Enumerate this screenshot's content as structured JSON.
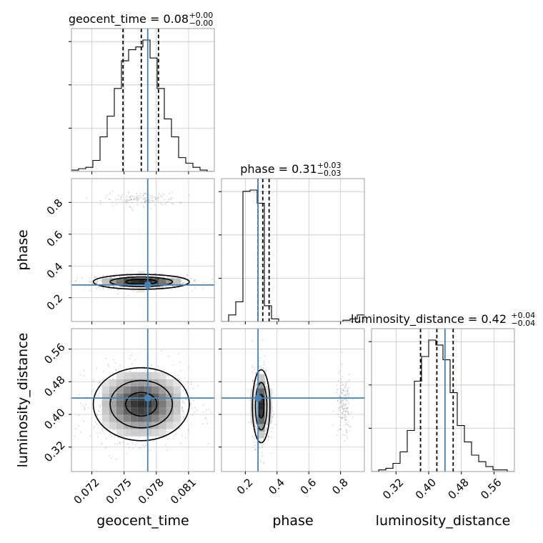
{
  "chart_data": {
    "type": "corner",
    "parameters": [
      "geocent_time",
      "phase",
      "luminosity_distance"
    ],
    "titles": [
      {
        "param": "geocent_time",
        "text": "geocent_time = 0.08",
        "sup": "+0.00",
        "sub": "−0.00"
      },
      {
        "param": "phase",
        "text": "phase = 0.31",
        "sup": "+0.03",
        "sub": "−0.03"
      },
      {
        "param": "luminosity_distance",
        "text": "luminosity_distance = 0.42",
        "sup": "+0.04",
        "sub": "−0.04"
      }
    ],
    "ranges": {
      "geocent_time": [
        0.0701,
        0.0834
      ],
      "phase": [
        0.05,
        0.95
      ],
      "luminosity_distance": [
        0.26,
        0.61
      ]
    },
    "ticks": {
      "geocent_time": [
        0.072,
        0.075,
        0.078,
        0.081
      ],
      "phase": [
        0.2,
        0.4,
        0.6,
        0.8
      ],
      "luminosity_distance": [
        0.32,
        0.4,
        0.48,
        0.56
      ]
    },
    "tick_labels": {
      "geocent_time": [
        "0.072",
        "0.075",
        "0.078",
        "0.081"
      ],
      "phase": [
        "0.2",
        "0.4",
        "0.6",
        "0.8"
      ],
      "luminosity_distance": [
        "0.32",
        "0.40",
        "0.48",
        "0.56"
      ]
    },
    "truths": {
      "geocent_time": 0.0772,
      "phase": 0.28,
      "luminosity_distance": 0.44
    },
    "quantiles": {
      "geocent_time": [
        0.0749,
        0.0766,
        0.0782
      ],
      "phase": [
        0.28,
        0.31,
        0.35
      ],
      "luminosity_distance": [
        0.38,
        0.42,
        0.46
      ]
    },
    "histograms": {
      "geocent_time": {
        "bins": 20,
        "counts": [
          1,
          2,
          3,
          8,
          25,
          40,
          60,
          80,
          88,
          90,
          95,
          82,
          60,
          38,
          25,
          10,
          6,
          3,
          1,
          0
        ]
      },
      "phase": {
        "bins": 20,
        "counts": [
          0,
          5,
          15,
          99,
          100,
          90,
          12,
          2,
          0,
          0,
          0,
          0,
          0,
          0,
          0,
          0,
          0,
          1,
          2,
          5
        ]
      },
      "luminosity_distance": {
        "bins": 20,
        "counts": [
          0,
          1,
          2,
          5,
          12,
          25,
          55,
          70,
          80,
          77,
          68,
          48,
          28,
          18,
          10,
          6,
          3,
          1,
          1,
          0
        ]
      }
    },
    "samples_2d": [
      {
        "x": "geocent_time",
        "y": "phase",
        "clusters": [
          {
            "mx": 0.0766,
            "my": 0.3,
            "sx": 0.0021,
            "sy": 0.022,
            "n": 900
          },
          {
            "mx": 0.0766,
            "my": 0.82,
            "sx": 0.0017,
            "sy": 0.022,
            "n": 140
          }
        ],
        "density": {
          "mx": 0.0766,
          "my": 0.3,
          "sx": 0.0021,
          "sy": 0.022
        }
      },
      {
        "x": "geocent_time",
        "y": "luminosity_distance",
        "clusters": [
          {
            "mx": 0.0766,
            "my": 0.425,
            "sx": 0.0022,
            "sy": 0.045,
            "n": 1000
          }
        ],
        "density": {
          "mx": 0.0766,
          "my": 0.425,
          "sx": 0.0021,
          "sy": 0.042
        }
      },
      {
        "x": "phase",
        "y": "luminosity_distance",
        "clusters": [
          {
            "mx": 0.3,
            "my": 0.42,
            "sx": 0.028,
            "sy": 0.045,
            "n": 800
          },
          {
            "mx": 0.82,
            "my": 0.42,
            "sx": 0.025,
            "sy": 0.04,
            "n": 160
          }
        ],
        "density": {
          "mx": 0.3,
          "my": 0.42,
          "sx": 0.026,
          "sy": 0.042
        }
      }
    ],
    "axis_labels": {
      "x": [
        "geocent_time",
        "phase",
        "luminosity_distance"
      ],
      "y": [
        "phase",
        "luminosity_distance"
      ]
    },
    "grid": true,
    "colors": {
      "truth": "#4682b4",
      "hist": "#000000",
      "scatter": "#666666",
      "grid": "#c8c8c8",
      "axes": "#888888"
    }
  }
}
